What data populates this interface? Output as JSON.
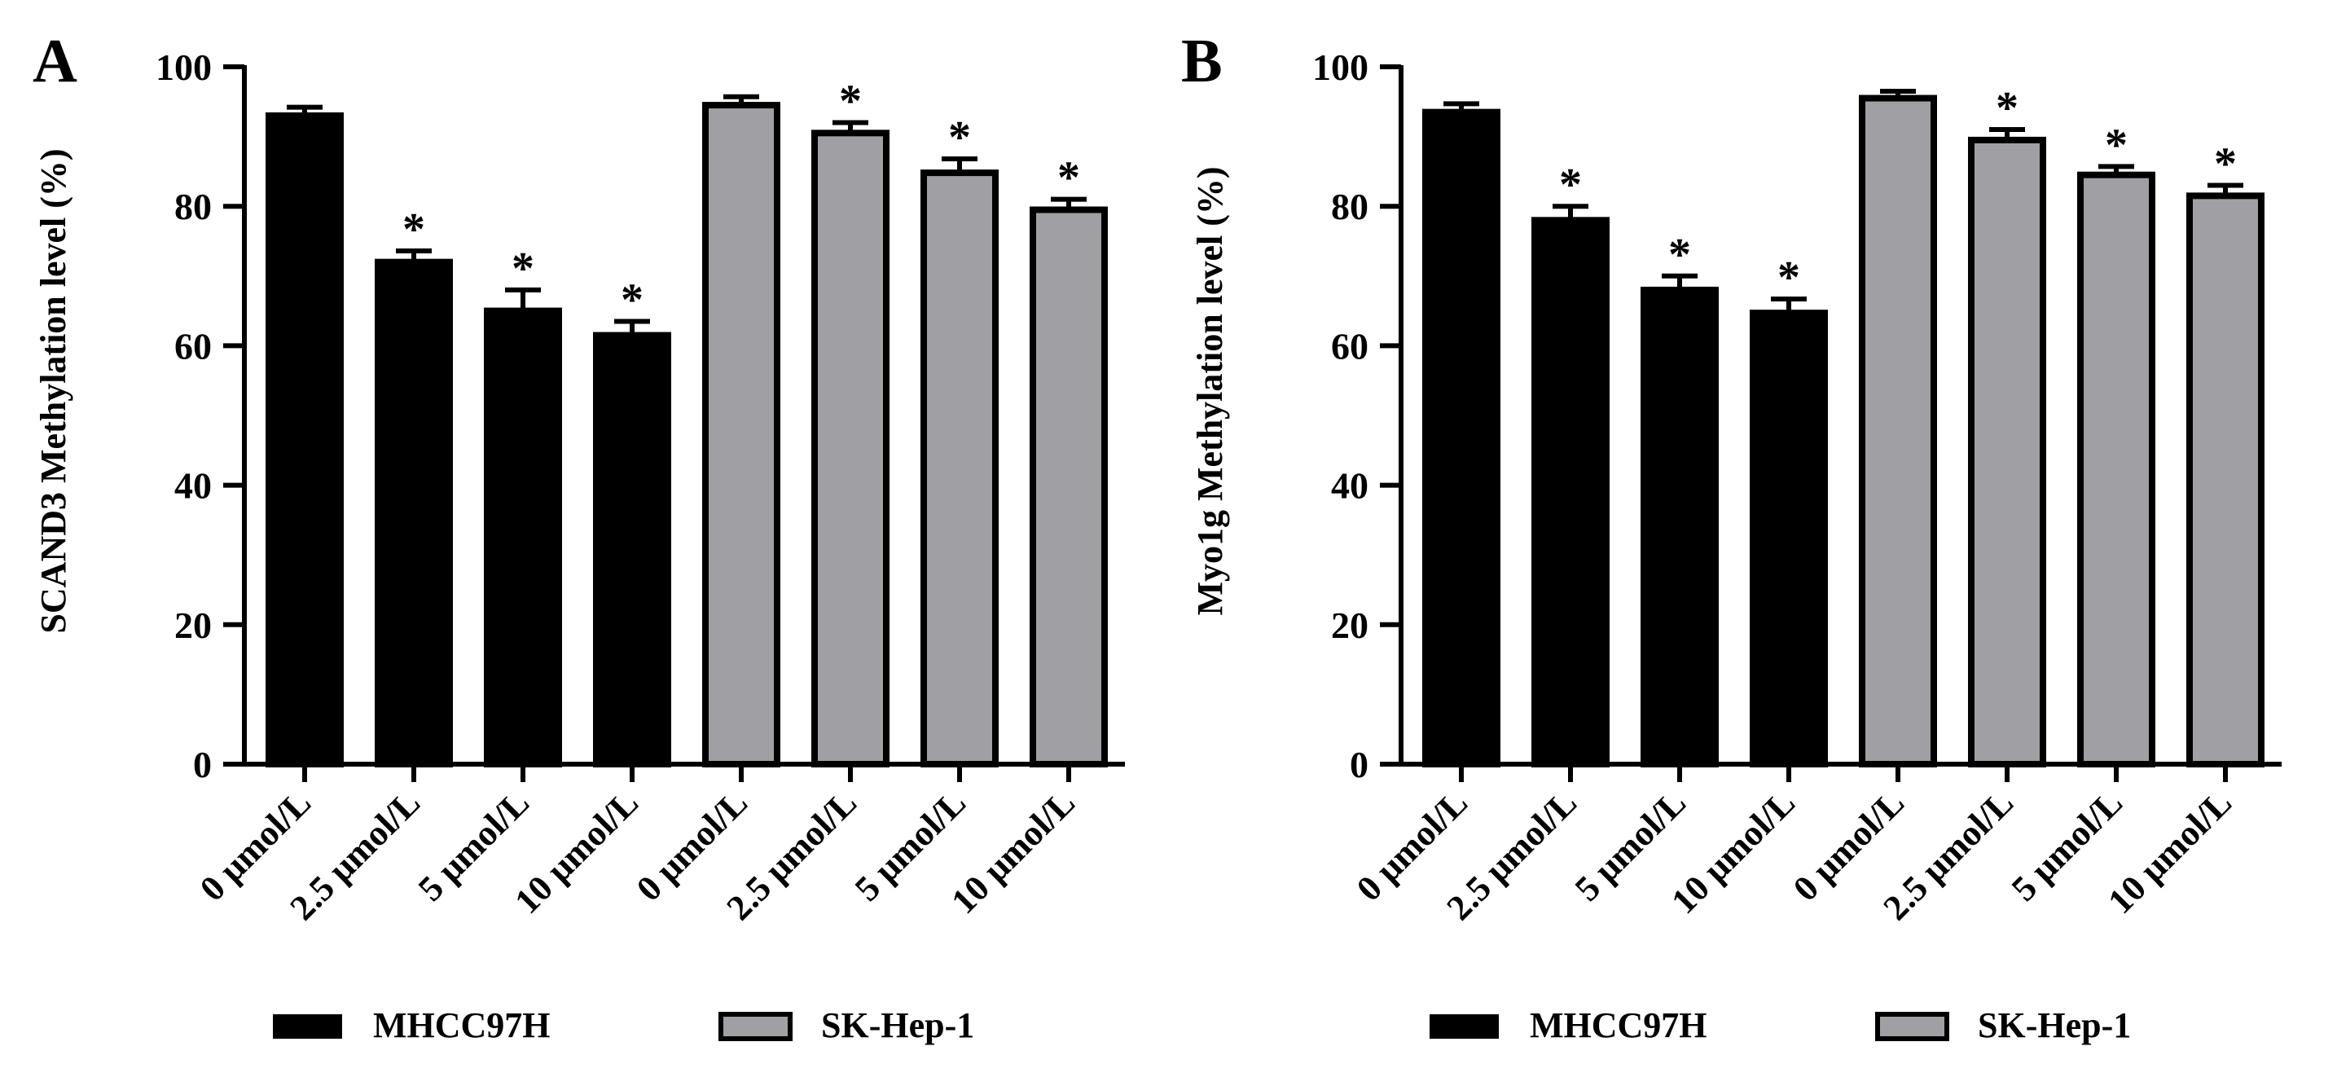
{
  "chart_data": [
    {
      "type": "bar",
      "panel_label": "A",
      "ylabel": "SCAND3 Methylation level (%)",
      "ylim": [
        0,
        100
      ],
      "yticks": [
        0,
        20,
        40,
        60,
        80,
        100
      ],
      "categories": [
        "0 μmol/L",
        "2.5 μmol/L",
        "5 μmol/L",
        "10 μmol/L",
        "0 μmol/L",
        "2.5 μmol/L",
        "5 μmol/L",
        "10 μmol/L"
      ],
      "series": [
        {
          "name": "MHCC97H",
          "color": "#000000",
          "indices": [
            0,
            1,
            2,
            3
          ]
        },
        {
          "name": "SK-Hep-1",
          "color": "#a0a0a4",
          "indices": [
            4,
            5,
            6,
            7
          ]
        }
      ],
      "values": [
        93,
        72,
        65,
        61.5,
        94.5,
        90.5,
        84.8,
        79.5
      ],
      "errors": [
        1.2,
        1.6,
        3.0,
        2.0,
        1.2,
        1.5,
        2.0,
        1.5
      ],
      "significance": [
        "",
        "*",
        "*",
        "*",
        "",
        "*",
        "*",
        "*"
      ],
      "legend": [
        "MHCC97H",
        "SK-Hep-1"
      ]
    },
    {
      "type": "bar",
      "panel_label": "B",
      "ylabel": "Myo1g Methylation level (%)",
      "ylim": [
        0,
        100
      ],
      "yticks": [
        0,
        20,
        40,
        60,
        80,
        100
      ],
      "categories": [
        "0 μmol/L",
        "2.5 μmol/L",
        "5 μmol/L",
        "10 μmol/L",
        "0 μmol/L",
        "2.5 μmol/L",
        "5 μmol/L",
        "10 μmol/L"
      ],
      "series": [
        {
          "name": "MHCC97H",
          "color": "#000000",
          "indices": [
            0,
            1,
            2,
            3
          ]
        },
        {
          "name": "SK-Hep-1",
          "color": "#a0a0a4",
          "indices": [
            4,
            5,
            6,
            7
          ]
        }
      ],
      "values": [
        93.5,
        78,
        68,
        64.7,
        95.5,
        89.5,
        84.5,
        81.5
      ],
      "errors": [
        1.2,
        2.0,
        2.0,
        2.0,
        1.0,
        1.5,
        1.2,
        1.5
      ],
      "significance": [
        "",
        "*",
        "*",
        "*",
        "",
        "*",
        "*",
        "*"
      ],
      "legend": [
        "MHCC97H",
        "SK-Hep-1"
      ]
    }
  ]
}
